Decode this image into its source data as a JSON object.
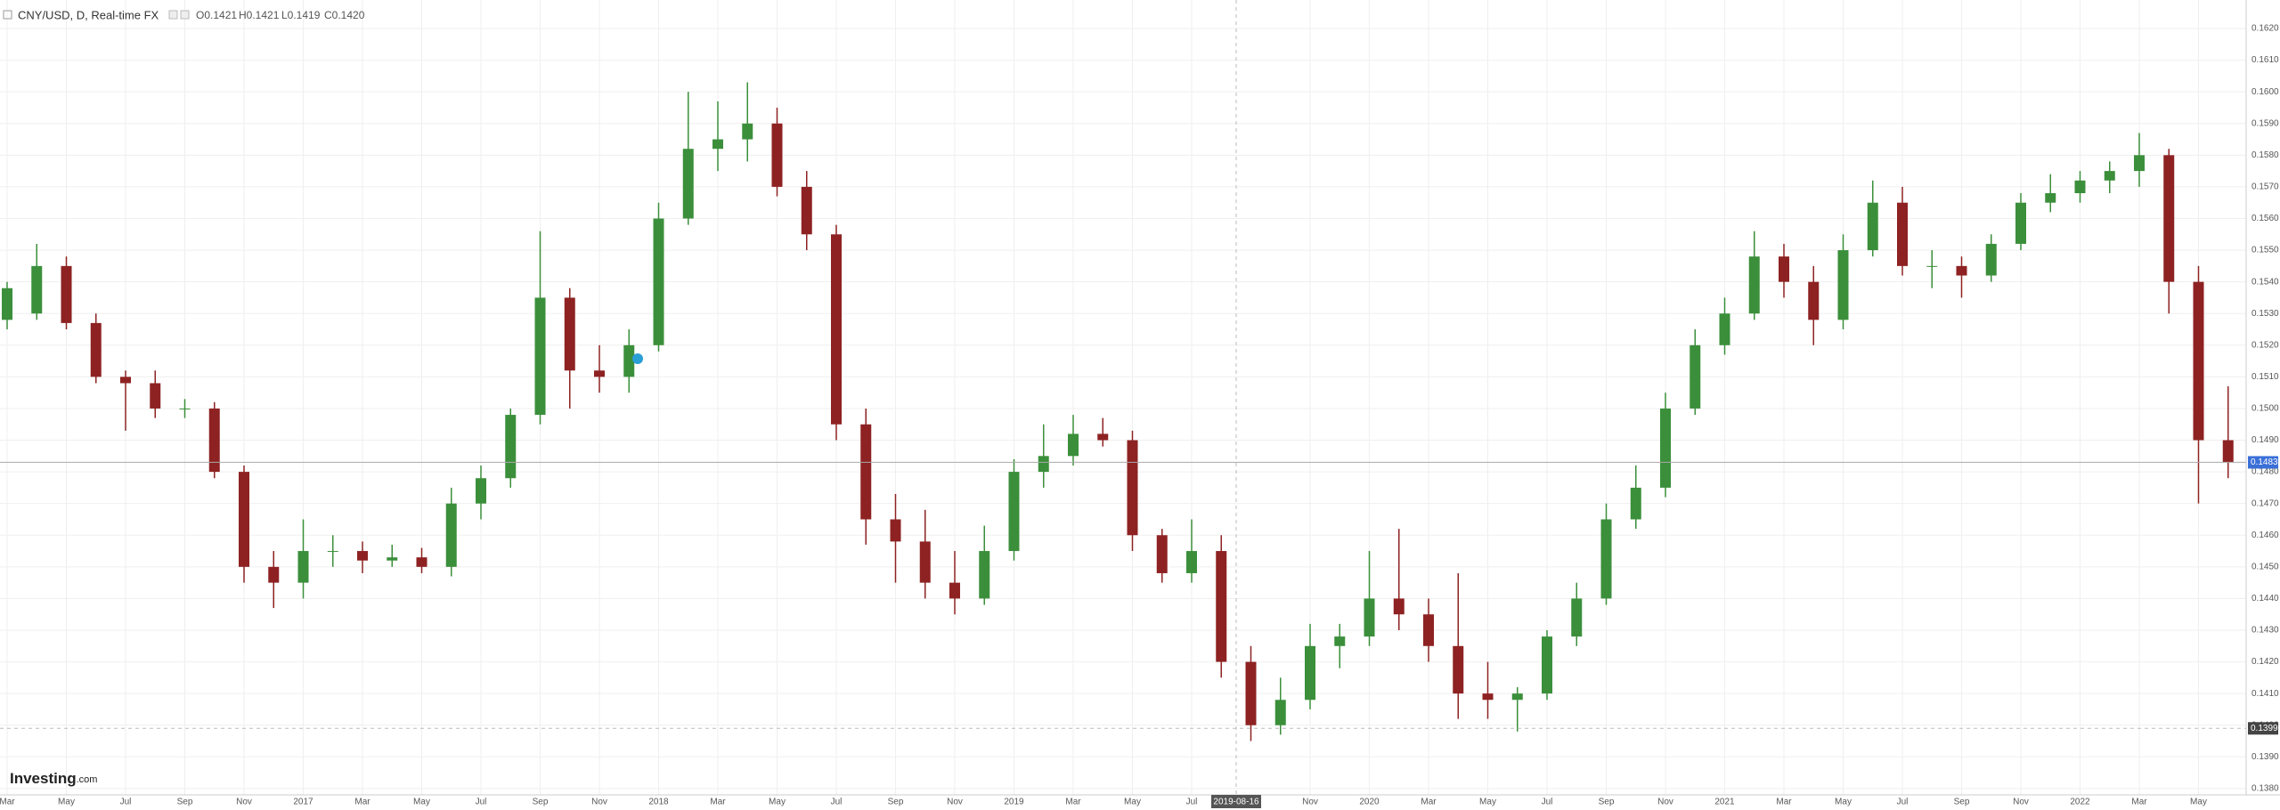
{
  "chart_data": {
    "type": "candlestick",
    "title": "CNY/USD, D, Real-time FX",
    "ohlc_legend": [
      {
        "value": 0.1421,
        "label": "O0.1421"
      },
      {
        "value": 0.1421,
        "label": "H0.1421"
      },
      {
        "value": 0.1419,
        "label": "L0.1419"
      },
      {
        "value": 0.142,
        "label": "C0.1420"
      }
    ],
    "logo": [
      "Investing",
      ".com"
    ],
    "categories": [
      "Mar",
      null,
      "May",
      null,
      "Jul",
      null,
      "Sep",
      null,
      "Nov",
      null,
      "2017",
      null,
      "Mar",
      null,
      "May",
      null,
      "Jul",
      null,
      "Sep",
      null,
      "Nov",
      null,
      "2018",
      null,
      "Mar",
      null,
      "May",
      null,
      "Jul",
      null,
      "Sep",
      null,
      "Nov",
      null,
      "2019",
      null,
      "Mar",
      null,
      "May",
      null,
      "Jul",
      null,
      null,
      null,
      "Nov",
      null,
      "2020",
      null,
      "Mar",
      null,
      "May",
      null,
      "Jul",
      null,
      "Sep",
      null,
      "Nov",
      null,
      "2021",
      null,
      "Mar",
      null,
      "May",
      null,
      "Jul",
      null,
      "Sep",
      null,
      "Nov",
      null,
      "2022",
      null,
      "Mar",
      null,
      "May",
      null
    ],
    "open": [
      0.1528,
      0.153,
      0.1545,
      0.1527,
      0.151,
      0.1508,
      0.15,
      0.15,
      0.148,
      0.145,
      0.1445,
      0.1455,
      0.1455,
      0.1452,
      0.1453,
      0.145,
      0.147,
      0.1478,
      0.1498,
      0.1535,
      0.1512,
      0.151,
      0.152,
      0.156,
      0.1582,
      0.1585,
      0.159,
      0.157,
      0.1555,
      0.1495,
      0.1465,
      0.1458,
      0.1445,
      0.144,
      0.1455,
      0.148,
      0.1485,
      0.1492,
      0.149,
      0.146,
      0.1448,
      0.1455,
      0.142,
      0.14,
      0.1408,
      0.1425,
      0.1428,
      0.144,
      0.1435,
      0.1425,
      0.141,
      0.1408,
      0.141,
      0.1428,
      0.144,
      0.1465,
      0.1475,
      0.15,
      0.152,
      0.153,
      0.1548,
      0.154,
      0.1528,
      0.155,
      0.1565,
      0.1545,
      0.1545,
      0.1542,
      0.1552,
      0.1565,
      0.1568,
      0.1572,
      0.1575,
      0.158,
      0.154,
      0.149
    ],
    "high": [
      0.154,
      0.1552,
      0.1548,
      0.153,
      0.1512,
      0.1512,
      0.1503,
      0.1502,
      0.1482,
      0.1455,
      0.1465,
      0.146,
      0.1458,
      0.1457,
      0.1456,
      0.1475,
      0.1482,
      0.15,
      0.1556,
      0.1538,
      0.152,
      0.1525,
      0.1565,
      0.16,
      0.1597,
      0.1603,
      0.1595,
      0.1575,
      0.1558,
      0.15,
      0.1473,
      0.1468,
      0.1455,
      0.1463,
      0.1484,
      0.1495,
      0.1498,
      0.1497,
      0.1493,
      0.1462,
      0.1465,
      0.146,
      0.1425,
      0.1415,
      0.1432,
      0.1432,
      0.1455,
      0.1462,
      0.144,
      0.1448,
      0.142,
      0.1412,
      0.143,
      0.1445,
      0.147,
      0.1482,
      0.1505,
      0.1525,
      0.1535,
      0.1556,
      0.1552,
      0.1545,
      0.1555,
      0.1572,
      0.157,
      0.155,
      0.1548,
      0.1555,
      0.1568,
      0.1574,
      0.1575,
      0.1578,
      0.1587,
      0.1582,
      0.1545,
      0.1507
    ],
    "low": [
      0.1525,
      0.1528,
      0.1525,
      0.1508,
      0.1493,
      0.1497,
      0.1497,
      0.1478,
      0.1445,
      0.1437,
      0.144,
      0.145,
      0.1448,
      0.145,
      0.1448,
      0.1447,
      0.1465,
      0.1475,
      0.1495,
      0.15,
      0.1505,
      0.1505,
      0.1518,
      0.1558,
      0.1575,
      0.1578,
      0.1567,
      0.155,
      0.149,
      0.1457,
      0.1445,
      0.144,
      0.1435,
      0.1438,
      0.1452,
      0.1475,
      0.1482,
      0.1488,
      0.1455,
      0.1445,
      0.1445,
      0.1415,
      0.1395,
      0.1397,
      0.1405,
      0.1418,
      0.1425,
      0.143,
      0.142,
      0.1402,
      0.1402,
      0.1398,
      0.1408,
      0.1425,
      0.1438,
      0.1462,
      0.1472,
      0.1498,
      0.1517,
      0.1528,
      0.1535,
      0.152,
      0.1525,
      0.1548,
      0.1542,
      0.1538,
      0.1535,
      0.154,
      0.155,
      0.1562,
      0.1565,
      0.1568,
      0.157,
      0.153,
      0.147,
      0.1478
    ],
    "close": [
      0.1538,
      0.1545,
      0.1527,
      0.151,
      0.1508,
      0.15,
      0.15,
      0.148,
      0.145,
      0.1445,
      0.1455,
      0.1455,
      0.1452,
      0.1453,
      0.145,
      0.147,
      0.1478,
      0.1498,
      0.1535,
      0.1512,
      0.151,
      0.152,
      0.156,
      0.1582,
      0.1585,
      0.159,
      0.157,
      0.1555,
      0.1495,
      0.1465,
      0.1458,
      0.1445,
      0.144,
      0.1455,
      0.148,
      0.1485,
      0.1492,
      0.149,
      0.146,
      0.1448,
      0.1455,
      0.142,
      0.14,
      0.1408,
      0.1425,
      0.1428,
      0.144,
      0.1435,
      0.1425,
      0.141,
      0.1408,
      0.141,
      0.1428,
      0.144,
      0.1465,
      0.1475,
      0.15,
      0.152,
      0.153,
      0.1548,
      0.154,
      0.1528,
      0.155,
      0.1565,
      0.1545,
      0.1545,
      0.1542,
      0.1552,
      0.1565,
      0.1568,
      0.1572,
      0.1575,
      0.158,
      0.154,
      0.149,
      0.1483
    ],
    "up_color": "#3b8f3b",
    "down_color": "#8e2222",
    "ylim": [
      0.1378,
      0.1629
    ],
    "yticks": [
      {
        "value": 0.138,
        "label": "0.1380"
      },
      {
        "value": 0.139,
        "label": "0.1390"
      },
      {
        "value": 0.14,
        "label": "0.1400"
      },
      {
        "value": 0.141,
        "label": "0.1410"
      },
      {
        "value": 0.142,
        "label": "0.1420"
      },
      {
        "value": 0.143,
        "label": "0.1430"
      },
      {
        "value": 0.144,
        "label": "0.1440"
      },
      {
        "value": 0.145,
        "label": "0.1450"
      },
      {
        "value": 0.146,
        "label": "0.1460"
      },
      {
        "value": 0.147,
        "label": "0.1470"
      },
      {
        "value": 0.148,
        "label": "0.1480"
      },
      {
        "value": 0.149,
        "label": "0.1490"
      },
      {
        "value": 0.15,
        "label": "0.1500"
      },
      {
        "value": 0.151,
        "label": "0.1510"
      },
      {
        "value": 0.152,
        "label": "0.1520"
      },
      {
        "value": 0.153,
        "label": "0.1530"
      },
      {
        "value": 0.154,
        "label": "0.1540"
      },
      {
        "value": 0.155,
        "label": "0.1550"
      },
      {
        "value": 0.156,
        "label": "0.1560"
      },
      {
        "value": 0.157,
        "label": "0.1570"
      },
      {
        "value": 0.158,
        "label": "0.1580"
      },
      {
        "value": 0.159,
        "label": "0.1590"
      },
      {
        "value": 0.16,
        "label": "0.1600"
      },
      {
        "value": 0.161,
        "label": "0.1610"
      },
      {
        "value": 0.162,
        "label": "0.1620"
      }
    ],
    "grid": true,
    "last_price": {
      "value": 0.1483,
      "label": "0.1483"
    },
    "crosshair": {
      "date": "2019-08-16",
      "price": {
        "value": 0.1399,
        "label": "0.1399"
      }
    }
  }
}
